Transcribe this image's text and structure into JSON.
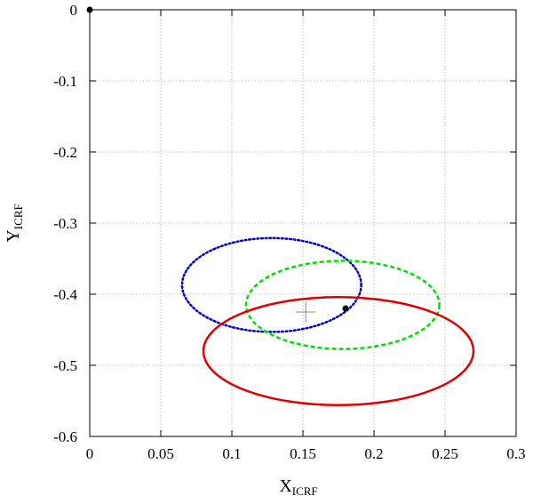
{
  "chart_data": {
    "type": "scatter",
    "title": "",
    "xlabel": {
      "main": "X",
      "sub": "ICRF"
    },
    "ylabel": {
      "main": "Y",
      "sub": "ICRF"
    },
    "xlim": [
      0,
      0.3
    ],
    "ylim": [
      -0.6,
      0
    ],
    "xticks": [
      0,
      0.05,
      0.1,
      0.15,
      0.2,
      0.25,
      0.3
    ],
    "yticks": [
      0,
      -0.1,
      -0.2,
      -0.3,
      -0.4,
      -0.5,
      -0.6
    ],
    "xtick_labels": [
      "0",
      "0.05",
      "0.1",
      "0.15",
      "0.2",
      "0.25",
      "0.3"
    ],
    "ytick_labels": [
      "0",
      "-0.1",
      "-0.2",
      "-0.3",
      "-0.4",
      "-0.5",
      "-0.6"
    ],
    "grid": true,
    "ellipses": [
      {
        "style": "dotted",
        "color": "#0000cc",
        "cx": 0.128,
        "cy": -0.387,
        "rx": 0.063,
        "ry": 0.066
      },
      {
        "style": "dashed",
        "color": "#00dd00",
        "cx": 0.178,
        "cy": -0.415,
        "rx": 0.068,
        "ry": 0.062
      },
      {
        "style": "solid",
        "color": "#dd0000",
        "cx": 0.175,
        "cy": -0.48,
        "rx": 0.095,
        "ry": 0.076
      }
    ],
    "points": [
      {
        "marker": "dot",
        "x": 0,
        "y": 0
      },
      {
        "marker": "dot",
        "x": 0.18,
        "y": -0.42
      },
      {
        "marker": "plus",
        "x": 0.152,
        "y": -0.425
      }
    ]
  }
}
